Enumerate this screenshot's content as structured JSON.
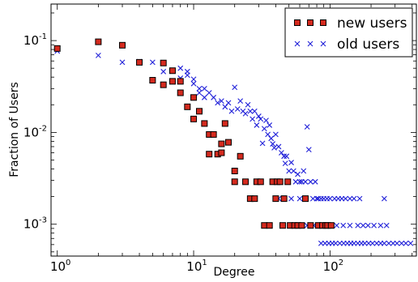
{
  "chart_data": {
    "type": "scatter",
    "xscale": "log",
    "yscale": "log",
    "xlim": [
      0.9,
      430
    ],
    "ylim": [
      0.00045,
      0.25
    ],
    "xlabel": "Degree",
    "ylabel": "Fraction of Users",
    "x_tick_labels": [
      {
        "value": 1,
        "base": "10",
        "exp": "0"
      },
      {
        "value": 10,
        "base": "10",
        "exp": "1"
      },
      {
        "value": 100,
        "base": "10",
        "exp": "2"
      }
    ],
    "y_tick_labels": [
      {
        "value": 0.001,
        "base": "10",
        "exp": "-3"
      },
      {
        "value": 0.01,
        "base": "10",
        "exp": "-2"
      },
      {
        "value": 0.1,
        "base": "10",
        "exp": "-1"
      }
    ],
    "legend_position": "top-right",
    "grid": false,
    "series": [
      {
        "name": "new users",
        "marker": "square",
        "color": "#d42a1e",
        "edge_color": "#000000",
        "points": [
          [
            1,
            0.082
          ],
          [
            2,
            0.097
          ],
          [
            3,
            0.089
          ],
          [
            4,
            0.058
          ],
          [
            5,
            0.037
          ],
          [
            6,
            0.057
          ],
          [
            6,
            0.033
          ],
          [
            7,
            0.047
          ],
          [
            7,
            0.036
          ],
          [
            8,
            0.036
          ],
          [
            8,
            0.027
          ],
          [
            9,
            0.019
          ],
          [
            10,
            0.024
          ],
          [
            10,
            0.014
          ],
          [
            11,
            0.017
          ],
          [
            12,
            0.0125
          ],
          [
            13,
            0.0095
          ],
          [
            13,
            0.0058
          ],
          [
            14,
            0.0095
          ],
          [
            15,
            0.0058
          ],
          [
            16,
            0.0075
          ],
          [
            16,
            0.006
          ],
          [
            17,
            0.0125
          ],
          [
            18,
            0.0078
          ],
          [
            20,
            0.0038
          ],
          [
            20,
            0.0029
          ],
          [
            22,
            0.0055
          ],
          [
            24,
            0.0029
          ],
          [
            26,
            0.0019
          ],
          [
            28,
            0.0019
          ],
          [
            29,
            0.0029
          ],
          [
            31,
            0.0029
          ],
          [
            33,
            0.00097
          ],
          [
            36,
            0.00097
          ],
          [
            38,
            0.0029
          ],
          [
            40,
            0.0019
          ],
          [
            41,
            0.0029
          ],
          [
            43,
            0.0029
          ],
          [
            45,
            0.00097
          ],
          [
            46,
            0.0019
          ],
          [
            49,
            0.0029
          ],
          [
            51,
            0.00097
          ],
          [
            55,
            0.00097
          ],
          [
            58,
            0.00097
          ],
          [
            62,
            0.00097
          ],
          [
            66,
            0.0019
          ],
          [
            72,
            0.00097
          ],
          [
            82,
            0.00097
          ],
          [
            88,
            0.00097
          ],
          [
            93,
            0.00097
          ],
          [
            96,
            0.00097
          ],
          [
            102,
            0.00097
          ]
        ]
      },
      {
        "name": "old users",
        "marker": "x",
        "color": "#1f1fd8",
        "points": [
          [
            1,
            0.077
          ],
          [
            2,
            0.069
          ],
          [
            3,
            0.058
          ],
          [
            4,
            0.059
          ],
          [
            5,
            0.058
          ],
          [
            6,
            0.046
          ],
          [
            7,
            0.047
          ],
          [
            8,
            0.05
          ],
          [
            8,
            0.039
          ],
          [
            9,
            0.046
          ],
          [
            9,
            0.042
          ],
          [
            10,
            0.038
          ],
          [
            10,
            0.034
          ],
          [
            11,
            0.03
          ],
          [
            11,
            0.027
          ],
          [
            12,
            0.03
          ],
          [
            12,
            0.024
          ],
          [
            13,
            0.027
          ],
          [
            14,
            0.024
          ],
          [
            15,
            0.021
          ],
          [
            16,
            0.022
          ],
          [
            17,
            0.019
          ],
          [
            18,
            0.021
          ],
          [
            19,
            0.017
          ],
          [
            20,
            0.031
          ],
          [
            21,
            0.018
          ],
          [
            22,
            0.022
          ],
          [
            23,
            0.017
          ],
          [
            24,
            0.016
          ],
          [
            25,
            0.02
          ],
          [
            26,
            0.017
          ],
          [
            27,
            0.014
          ],
          [
            28,
            0.017
          ],
          [
            29,
            0.012
          ],
          [
            30,
            0.015
          ],
          [
            31,
            0.014
          ],
          [
            32,
            0.0076
          ],
          [
            33,
            0.011
          ],
          [
            34,
            0.0135
          ],
          [
            35,
            0.0095
          ],
          [
            36,
            0.012
          ],
          [
            37,
            0.0086
          ],
          [
            38,
            0.0075
          ],
          [
            39,
            0.0068
          ],
          [
            40,
            0.0095
          ],
          [
            42,
            0.007
          ],
          [
            44,
            0.006
          ],
          [
            46,
            0.0055
          ],
          [
            47,
            0.0046
          ],
          [
            48,
            0.0055
          ],
          [
            50,
            0.0038
          ],
          [
            52,
            0.0047
          ],
          [
            54,
            0.0038
          ],
          [
            56,
            0.0029
          ],
          [
            58,
            0.0035
          ],
          [
            60,
            0.0029
          ],
          [
            62,
            0.0029
          ],
          [
            64,
            0.0038
          ],
          [
            66,
            0.0029
          ],
          [
            68,
            0.0115
          ],
          [
            70,
            0.0065
          ],
          [
            72,
            0.0029
          ],
          [
            75,
            0.0019
          ],
          [
            78,
            0.0029
          ],
          [
            80,
            0.0019
          ],
          [
            42,
            0.0019
          ],
          [
            52,
            0.0019
          ],
          [
            60,
            0.0019
          ],
          [
            82,
            0.0019
          ],
          [
            86,
            0.0019
          ],
          [
            90,
            0.0019
          ],
          [
            95,
            0.0019
          ],
          [
            100,
            0.0019
          ],
          [
            108,
            0.0019
          ],
          [
            115,
            0.0019
          ],
          [
            122,
            0.0019
          ],
          [
            130,
            0.0019
          ],
          [
            140,
            0.0019
          ],
          [
            150,
            0.0019
          ],
          [
            165,
            0.0019
          ],
          [
            250,
            0.0019
          ],
          [
            68,
            0.00097
          ],
          [
            76,
            0.00097
          ],
          [
            84,
            0.00097
          ],
          [
            92,
            0.00097
          ],
          [
            100,
            0.00097
          ],
          [
            112,
            0.00097
          ],
          [
            125,
            0.00097
          ],
          [
            140,
            0.00097
          ],
          [
            160,
            0.00097
          ],
          [
            175,
            0.00097
          ],
          [
            190,
            0.00097
          ],
          [
            210,
            0.00097
          ],
          [
            235,
            0.00097
          ],
          [
            260,
            0.00097
          ],
          [
            86,
            0.00062
          ],
          [
            92,
            0.00062
          ],
          [
            98,
            0.00062
          ],
          [
            104,
            0.00062
          ],
          [
            110,
            0.00062
          ],
          [
            118,
            0.00062
          ],
          [
            126,
            0.00062
          ],
          [
            134,
            0.00062
          ],
          [
            142,
            0.00062
          ],
          [
            150,
            0.00062
          ],
          [
            160,
            0.00062
          ],
          [
            170,
            0.00062
          ],
          [
            180,
            0.00062
          ],
          [
            192,
            0.00062
          ],
          [
            205,
            0.00062
          ],
          [
            220,
            0.00062
          ],
          [
            235,
            0.00062
          ],
          [
            250,
            0.00062
          ],
          [
            270,
            0.00062
          ],
          [
            290,
            0.00062
          ],
          [
            310,
            0.00062
          ],
          [
            335,
            0.00062
          ],
          [
            360,
            0.00062
          ],
          [
            390,
            0.00062
          ]
        ]
      }
    ]
  }
}
